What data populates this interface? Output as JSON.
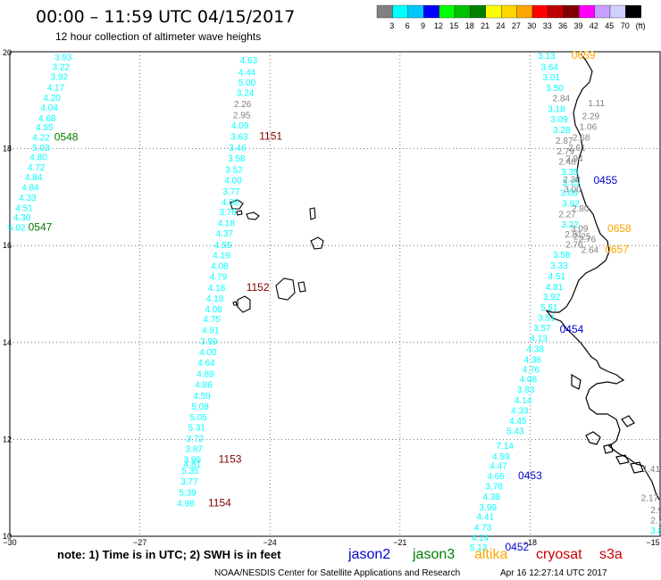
{
  "header": {
    "title": "00:00 – 11:59 UTC 04/15/2017",
    "subtitle": "12 hour collection of altimeter wave heights"
  },
  "legend": {
    "ticks": [
      "3",
      "6",
      "9",
      "12",
      "15",
      "18",
      "21",
      "24",
      "27",
      "30",
      "33",
      "36",
      "39",
      "42",
      "45",
      "70",
      "(ft)"
    ],
    "colors": [
      "#808080",
      "#00ffff",
      "#00c8ff",
      "#0000ff",
      "#00ff00",
      "#00c000",
      "#008000",
      "#ffff00",
      "#ffd700",
      "#ffa500",
      "#ff0000",
      "#c00000",
      "#800000",
      "#ff00ff",
      "#c8a0ff",
      "#d0d0ff",
      "#000000"
    ]
  },
  "axes": {
    "x_ticks": [
      "−30",
      "−27",
      "−24",
      "−21",
      "−18",
      "−15"
    ],
    "y_ticks": [
      "20",
      "18",
      "16",
      "14",
      "12",
      "10"
    ],
    "x_range": [
      -30,
      -15
    ],
    "y_range": [
      10,
      20
    ]
  },
  "footer": {
    "note": "note: 1) Time is in UTC; 2) SWH is in feet",
    "credit": "NOAA/NESDIS Center for Satellite Applications and Research",
    "timestamp": "Apr 16 12:27:14 UTC 2017"
  },
  "satellites": [
    {
      "name": "jason2",
      "color": "#0000cc"
    },
    {
      "name": "jason3",
      "color": "#008000"
    },
    {
      "name": "altika",
      "color": "#ffa500"
    },
    {
      "name": "cryosat",
      "color": "#cc0000"
    },
    {
      "name": "s3a",
      "color": "#cc0000"
    }
  ],
  "tracks": [
    {
      "id": "jason3-left",
      "points": [
        {
          "lon": -28.77,
          "lat": 19.9,
          "v": "3.93",
          "c": "#00ffff"
        },
        {
          "lon": -28.82,
          "lat": 19.7,
          "v": "3.22",
          "c": "#00ffff"
        },
        {
          "lon": -28.86,
          "lat": 19.49,
          "v": "3.92",
          "c": "#00ffff"
        },
        {
          "lon": -28.94,
          "lat": 19.27,
          "v": "4.17",
          "c": "#00ffff"
        },
        {
          "lon": -29.03,
          "lat": 19.06,
          "v": "4.20",
          "c": "#00ffff"
        },
        {
          "lon": -29.09,
          "lat": 18.86,
          "v": "4.04",
          "c": "#00ffff"
        },
        {
          "lon": -29.14,
          "lat": 18.64,
          "v": "4.68",
          "c": "#00ffff"
        },
        {
          "lon": -29.2,
          "lat": 18.45,
          "v": "4.55",
          "c": "#00ffff"
        },
        {
          "lon": -29.28,
          "lat": 18.24,
          "v": "4.22",
          "c": "#00ffff"
        },
        {
          "lon": -29.28,
          "lat": 18.03,
          "v": "5.03",
          "c": "#00ffff"
        },
        {
          "lon": -29.34,
          "lat": 17.84,
          "v": "4.80",
          "c": "#00ffff"
        },
        {
          "lon": -29.39,
          "lat": 17.62,
          "v": "4.72",
          "c": "#00ffff"
        },
        {
          "lon": -29.45,
          "lat": 17.42,
          "v": "4.84",
          "c": "#00ffff"
        },
        {
          "lon": -29.53,
          "lat": 17.21,
          "v": "4.84",
          "c": "#00ffff"
        },
        {
          "lon": -29.59,
          "lat": 17.0,
          "v": "4.33",
          "c": "#00ffff"
        },
        {
          "lon": -29.67,
          "lat": 16.79,
          "v": "4.51",
          "c": "#00ffff"
        },
        {
          "lon": -29.72,
          "lat": 16.59,
          "v": "4.30",
          "c": "#00ffff"
        },
        {
          "lon": -29.84,
          "lat": 16.38,
          "v": "5.02",
          "c": "#00ffff"
        }
      ],
      "times": [
        {
          "lon": -28.7,
          "lat": 18.24,
          "t": "0548",
          "c": "#008000"
        },
        {
          "lon": -29.3,
          "lat": 16.38,
          "t": "0547",
          "c": "#008000"
        }
      ]
    },
    {
      "id": "cryosat-middle",
      "points": [
        {
          "lon": -24.49,
          "lat": 19.83,
          "v": "4.63",
          "c": "#00ffff"
        },
        {
          "lon": -24.53,
          "lat": 19.59,
          "v": "4.44",
          "c": "#00ffff"
        },
        {
          "lon": -24.53,
          "lat": 19.37,
          "v": "5.00",
          "c": "#00ffff"
        },
        {
          "lon": -24.57,
          "lat": 19.16,
          "v": "3.24",
          "c": "#00ffff"
        },
        {
          "lon": -24.63,
          "lat": 18.93,
          "v": "2.26",
          "c": "#808080"
        },
        {
          "lon": -24.65,
          "lat": 18.7,
          "v": "2.95",
          "c": "#808080"
        },
        {
          "lon": -24.69,
          "lat": 18.49,
          "v": "4.09",
          "c": "#00ffff"
        },
        {
          "lon": -24.71,
          "lat": 18.26,
          "v": "3.63",
          "c": "#00ffff"
        },
        {
          "lon": -24.75,
          "lat": 18.03,
          "v": "3.46",
          "c": "#00ffff"
        },
        {
          "lon": -24.77,
          "lat": 17.81,
          "v": "3.58",
          "c": "#00ffff"
        },
        {
          "lon": -24.83,
          "lat": 17.58,
          "v": "3.52",
          "c": "#00ffff"
        },
        {
          "lon": -24.85,
          "lat": 17.36,
          "v": "4.00",
          "c": "#00ffff"
        },
        {
          "lon": -24.89,
          "lat": 17.13,
          "v": "3.77",
          "c": "#00ffff"
        },
        {
          "lon": -24.92,
          "lat": 16.91,
          "v": "4.08",
          "c": "#00ffff"
        },
        {
          "lon": -24.97,
          "lat": 16.7,
          "v": "3.76",
          "c": "#00ffff"
        },
        {
          "lon": -25.01,
          "lat": 16.47,
          "v": "4.18",
          "c": "#00ffff"
        },
        {
          "lon": -25.05,
          "lat": 16.26,
          "v": "4.37",
          "c": "#00ffff"
        },
        {
          "lon": -25.08,
          "lat": 16.02,
          "v": "4.55",
          "c": "#00ffff"
        },
        {
          "lon": -25.12,
          "lat": 15.81,
          "v": "4.19",
          "c": "#00ffff"
        },
        {
          "lon": -25.16,
          "lat": 15.59,
          "v": "4.08",
          "c": "#00ffff"
        },
        {
          "lon": -25.19,
          "lat": 15.37,
          "v": "4.79",
          "c": "#00ffff"
        },
        {
          "lon": -25.23,
          "lat": 15.14,
          "v": "4.18",
          "c": "#00ffff"
        },
        {
          "lon": -25.27,
          "lat": 14.92,
          "v": "4.18",
          "c": "#00ffff"
        },
        {
          "lon": -25.3,
          "lat": 14.7,
          "v": "4.08",
          "c": "#00ffff"
        },
        {
          "lon": -25.34,
          "lat": 14.49,
          "v": "4.75",
          "c": "#00ffff"
        },
        {
          "lon": -25.37,
          "lat": 14.26,
          "v": "4.91",
          "c": "#00ffff"
        },
        {
          "lon": -25.41,
          "lat": 14.03,
          "v": "3.99",
          "c": "#00ffff"
        },
        {
          "lon": -25.43,
          "lat": 13.81,
          "v": "4.00",
          "c": "#00ffff"
        },
        {
          "lon": -25.47,
          "lat": 13.59,
          "v": "4.64",
          "c": "#00ffff"
        },
        {
          "lon": -25.49,
          "lat": 13.36,
          "v": "4.89",
          "c": "#00ffff"
        },
        {
          "lon": -25.53,
          "lat": 13.14,
          "v": "4.86",
          "c": "#00ffff"
        },
        {
          "lon": -25.57,
          "lat": 12.91,
          "v": "4.59",
          "c": "#00ffff"
        },
        {
          "lon": -25.61,
          "lat": 12.69,
          "v": "5.08",
          "c": "#00ffff"
        },
        {
          "lon": -25.65,
          "lat": 12.47,
          "v": "5.05",
          "c": "#00ffff"
        },
        {
          "lon": -25.69,
          "lat": 12.26,
          "v": "5.31",
          "c": "#00ffff"
        },
        {
          "lon": -25.73,
          "lat": 12.03,
          "v": "3.72",
          "c": "#00ffff"
        },
        {
          "lon": -25.75,
          "lat": 11.81,
          "v": "3.87",
          "c": "#00ffff"
        },
        {
          "lon": -25.79,
          "lat": 11.59,
          "v": "3.99",
          "c": "#00ffff"
        },
        {
          "lon": -25.79,
          "lat": 11.5,
          "v": "4.81",
          "c": "#00ffff"
        },
        {
          "lon": -25.84,
          "lat": 11.36,
          "v": "5.35",
          "c": "#00ffff"
        },
        {
          "lon": -25.86,
          "lat": 11.14,
          "v": "3.77",
          "c": "#00ffff"
        },
        {
          "lon": -25.9,
          "lat": 10.91,
          "v": "5.39",
          "c": "#00ffff"
        },
        {
          "lon": -25.94,
          "lat": 10.69,
          "v": "4.98",
          "c": "#00ffff"
        }
      ],
      "times": [
        {
          "lon": -23.98,
          "lat": 18.26,
          "t": "1151",
          "c": "#800000"
        },
        {
          "lon": -24.28,
          "lat": 15.14,
          "t": "1152",
          "c": "#800000"
        },
        {
          "lon": -24.92,
          "lat": 11.59,
          "t": "1153",
          "c": "#800000"
        },
        {
          "lon": -25.16,
          "lat": 10.69,
          "t": "1154",
          "c": "#800000"
        }
      ]
    },
    {
      "id": "jason2-right",
      "points": [
        {
          "lon": -17.62,
          "lat": 19.93,
          "v": "3.13",
          "c": "#00ffff"
        },
        {
          "lon": -17.55,
          "lat": 19.7,
          "v": "3.64",
          "c": "#00ffff"
        },
        {
          "lon": -17.51,
          "lat": 19.48,
          "v": "3.01",
          "c": "#00ffff"
        },
        {
          "lon": -17.43,
          "lat": 19.26,
          "v": "3.50",
          "c": "#00ffff"
        },
        {
          "lon": -17.28,
          "lat": 19.05,
          "v": "2.84",
          "c": "#808080"
        },
        {
          "lon": -17.39,
          "lat": 18.83,
          "v": "3.18",
          "c": "#00ffff"
        },
        {
          "lon": -17.33,
          "lat": 18.62,
          "v": "3.09",
          "c": "#00ffff"
        },
        {
          "lon": -17.27,
          "lat": 18.4,
          "v": "3.28",
          "c": "#00ffff"
        },
        {
          "lon": -17.21,
          "lat": 18.18,
          "v": "2.87",
          "c": "#808080"
        },
        {
          "lon": -17.18,
          "lat": 17.96,
          "v": "2.79",
          "c": "#808080"
        },
        {
          "lon": -17.14,
          "lat": 17.74,
          "v": "2.48",
          "c": "#808080"
        },
        {
          "lon": -17.08,
          "lat": 17.53,
          "v": "3.35",
          "c": "#00ffff"
        },
        {
          "lon": -17.06,
          "lat": 17.31,
          "v": "3.15",
          "c": "#00ffff"
        },
        {
          "lon": -17.1,
          "lat": 17.1,
          "v": "3.08",
          "c": "#00ffff"
        },
        {
          "lon": -17.06,
          "lat": 16.88,
          "v": "3.92",
          "c": "#00ffff"
        },
        {
          "lon": -17.14,
          "lat": 16.66,
          "v": "2.27",
          "c": "#808080"
        },
        {
          "lon": -17.08,
          "lat": 16.45,
          "v": "3.22",
          "c": "#00ffff"
        },
        {
          "lon": -17.0,
          "lat": 16.24,
          "v": "2.81",
          "c": "#808080"
        },
        {
          "lon": -16.98,
          "lat": 16.03,
          "v": "2.76",
          "c": "#808080"
        },
        {
          "lon": -17.27,
          "lat": 15.82,
          "v": "3.58",
          "c": "#00ffff"
        },
        {
          "lon": -17.33,
          "lat": 15.6,
          "v": "3.33",
          "c": "#00ffff"
        },
        {
          "lon": -17.38,
          "lat": 15.38,
          "v": "4.51",
          "c": "#00ffff"
        },
        {
          "lon": -17.44,
          "lat": 15.16,
          "v": "4.81",
          "c": "#00ffff"
        },
        {
          "lon": -17.5,
          "lat": 14.95,
          "v": "3.92",
          "c": "#00ffff"
        },
        {
          "lon": -17.56,
          "lat": 14.73,
          "v": "5.51",
          "c": "#00ffff"
        },
        {
          "lon": -17.62,
          "lat": 14.52,
          "v": "3.51",
          "c": "#00ffff"
        },
        {
          "lon": -17.72,
          "lat": 14.31,
          "v": "3.57",
          "c": "#00ffff"
        },
        {
          "lon": -17.8,
          "lat": 14.1,
          "v": "4.13",
          "c": "#00ffff"
        },
        {
          "lon": -17.88,
          "lat": 13.88,
          "v": "4.38",
          "c": "#00ffff"
        },
        {
          "lon": -17.94,
          "lat": 13.66,
          "v": "4.36",
          "c": "#00ffff"
        },
        {
          "lon": -17.98,
          "lat": 13.45,
          "v": "4.76",
          "c": "#00ffff"
        },
        {
          "lon": -18.04,
          "lat": 13.25,
          "v": "4.08",
          "c": "#00ffff"
        },
        {
          "lon": -18.1,
          "lat": 13.04,
          "v": "3.83",
          "c": "#00ffff"
        },
        {
          "lon": -18.16,
          "lat": 12.82,
          "v": "4.14",
          "c": "#00ffff"
        },
        {
          "lon": -18.24,
          "lat": 12.61,
          "v": "4.33",
          "c": "#00ffff"
        },
        {
          "lon": -18.28,
          "lat": 12.39,
          "v": "4.45",
          "c": "#00ffff"
        },
        {
          "lon": -18.34,
          "lat": 12.18,
          "v": "5.43",
          "c": "#00ffff"
        },
        {
          "lon": -18.58,
          "lat": 11.88,
          "v": "7.14",
          "c": "#00ffff"
        },
        {
          "lon": -18.67,
          "lat": 11.66,
          "v": "4.59",
          "c": "#00ffff"
        },
        {
          "lon": -18.73,
          "lat": 11.46,
          "v": "4.47",
          "c": "#00ffff"
        },
        {
          "lon": -18.79,
          "lat": 11.25,
          "v": "4.66",
          "c": "#00ffff"
        },
        {
          "lon": -18.83,
          "lat": 11.04,
          "v": "3.78",
          "c": "#00ffff"
        },
        {
          "lon": -18.89,
          "lat": 10.83,
          "v": "4.38",
          "c": "#00ffff"
        },
        {
          "lon": -18.97,
          "lat": 10.61,
          "v": "3.99",
          "c": "#00ffff"
        },
        {
          "lon": -19.03,
          "lat": 10.41,
          "v": "4.41",
          "c": "#00ffff"
        },
        {
          "lon": -19.09,
          "lat": 10.19,
          "v": "4.73",
          "c": "#00ffff"
        },
        {
          "lon": -19.15,
          "lat": 9.98,
          "v": "4.14",
          "c": "#00ffff"
        },
        {
          "lon": -19.19,
          "lat": 9.78,
          "v": "5.13",
          "c": "#00ffff"
        }
      ],
      "times": [
        {
          "lon": -16.26,
          "lat": 17.35,
          "t": "0455",
          "c": "#0000cc"
        },
        {
          "lon": -17.04,
          "lat": 14.27,
          "t": "0454",
          "c": "#0000cc"
        },
        {
          "lon": -18.0,
          "lat": 11.25,
          "t": "0453",
          "c": "#0000cc"
        },
        {
          "lon": -18.3,
          "lat": 9.78,
          "t": "0452",
          "c": "#0000cc"
        }
      ]
    },
    {
      "id": "altika-far-right",
      "points": [
        {
          "lon": -16.47,
          "lat": 18.95,
          "v": "1.11",
          "c": "#808080"
        },
        {
          "lon": -16.6,
          "lat": 18.68,
          "v": "2.29",
          "c": "#808080"
        },
        {
          "lon": -16.66,
          "lat": 18.46,
          "v": "1.06",
          "c": "#808080"
        },
        {
          "lon": -16.82,
          "lat": 18.24,
          "v": "2.68",
          "c": "#808080"
        },
        {
          "lon": -16.92,
          "lat": 18.03,
          "v": "2.61",
          "c": "#808080"
        },
        {
          "lon": -16.98,
          "lat": 17.81,
          "v": "2.94",
          "c": "#808080"
        },
        {
          "lon": -17.04,
          "lat": 17.38,
          "v": "2.30",
          "c": "#808080"
        },
        {
          "lon": -17.02,
          "lat": 17.17,
          "v": "3.00",
          "c": "#808080"
        },
        {
          "lon": -16.84,
          "lat": 16.78,
          "v": "2.80",
          "c": "#808080"
        },
        {
          "lon": -16.86,
          "lat": 16.36,
          "v": "3.09",
          "c": "#808080"
        },
        {
          "lon": -16.8,
          "lat": 16.2,
          "v": "2.25",
          "c": "#808080"
        },
        {
          "lon": -16.68,
          "lat": 16.14,
          "v": "2.76",
          "c": "#808080"
        },
        {
          "lon": -16.62,
          "lat": 15.92,
          "v": "2.64",
          "c": "#808080"
        },
        {
          "lon": -15.2,
          "lat": 11.4,
          "v": "1.41",
          "c": "#808080"
        },
        {
          "lon": -15.24,
          "lat": 10.8,
          "v": "2.17",
          "c": "#808080"
        },
        {
          "lon": -15.02,
          "lat": 10.55,
          "v": "2.94",
          "c": "#808080"
        },
        {
          "lon": -15.02,
          "lat": 10.34,
          "v": "2.71",
          "c": "#808080"
        },
        {
          "lon": -15.02,
          "lat": 10.13,
          "v": "3.88",
          "c": "#00ffff"
        }
      ],
      "times": [
        {
          "lon": -16.77,
          "lat": 19.93,
          "t": "0659",
          "c": "#ffa500"
        },
        {
          "lon": -15.94,
          "lat": 16.35,
          "t": "0658",
          "c": "#ffa500"
        },
        {
          "lon": -16.0,
          "lat": 15.92,
          "t": "0657",
          "c": "#ffa500"
        }
      ]
    }
  ]
}
